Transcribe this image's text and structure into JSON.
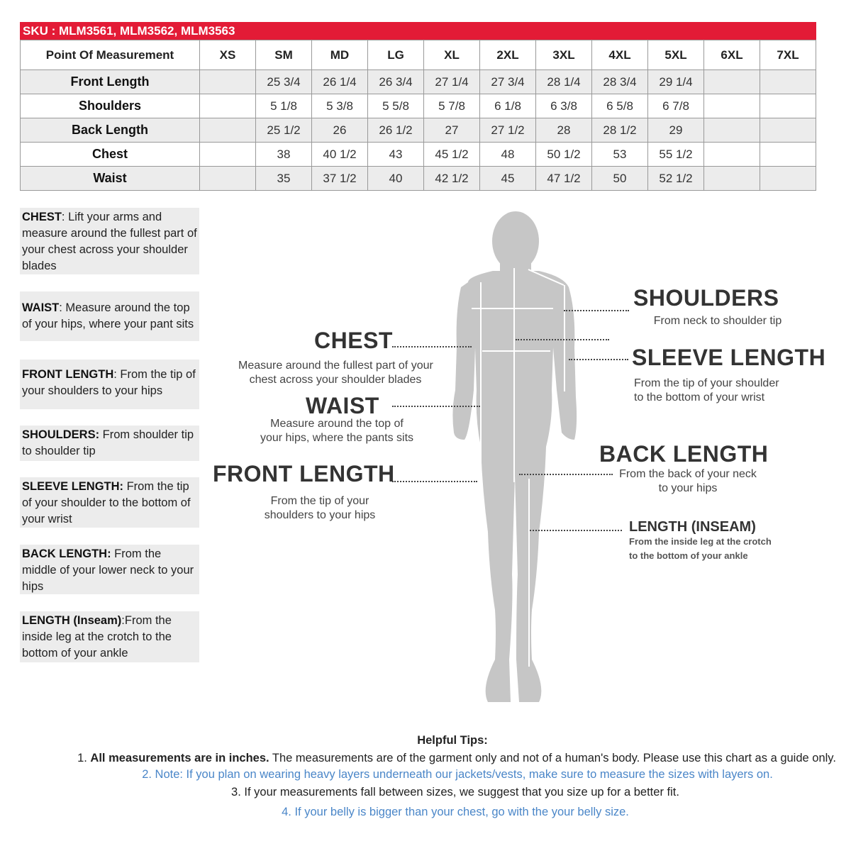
{
  "colors": {
    "header": "#e31b36",
    "silhouette": "#c6c6c6",
    "tip_blue": "#4a86c8"
  },
  "sku": "SKU : MLM3561, MLM3562, MLM3563",
  "table": {
    "headers": [
      "Point Of Measurement",
      "XS",
      "SM",
      "MD",
      "LG",
      "XL",
      "2XL",
      "3XL",
      "4XL",
      "5XL",
      "6XL",
      "7XL"
    ],
    "rows": [
      {
        "label": "Front Length",
        "values": [
          "",
          "25 3/4",
          "26 1/4",
          "26 3/4",
          "27 1/4",
          "27 3/4",
          "28 1/4",
          "28 3/4",
          "29 1/4",
          "",
          ""
        ]
      },
      {
        "label": "Shoulders",
        "values": [
          "",
          "5 1/8",
          "5 3/8",
          "5 5/8",
          "5 7/8",
          "6 1/8",
          "6 3/8",
          "6 5/8",
          "6 7/8",
          "",
          ""
        ]
      },
      {
        "label": "Back Length",
        "values": [
          "",
          "25 1/2",
          "26",
          "26 1/2",
          "27",
          "27 1/2",
          "28",
          "28 1/2",
          "29",
          "",
          ""
        ]
      },
      {
        "label": "Chest",
        "values": [
          "",
          "38",
          "40 1/2",
          "43",
          "45 1/2",
          "48",
          "50 1/2",
          "53",
          "55 1/2",
          "",
          ""
        ]
      },
      {
        "label": "Waist",
        "values": [
          "",
          "35",
          "37 1/2",
          "40",
          "42 1/2",
          "45",
          "47 1/2",
          "50",
          "52 1/2",
          "",
          ""
        ]
      }
    ]
  },
  "guide": [
    {
      "term": "CHEST",
      "text": ": Lift your arms  and measure around the fullest part of your chest across your shoulder blades"
    },
    {
      "term": "WAIST",
      "text": ":  Measure around the top of your hips, where your pant sits"
    },
    {
      "term": "FRONT LENGTH",
      "text": ": From the tip of your shoulders to your hips"
    },
    {
      "term": "SHOULDERS:",
      "text": " From shoulder tip to shoulder tip"
    },
    {
      "term": "SLEEVE LENGTH:",
      "text": " From the tip of your shoulder to the bottom of your wrist"
    },
    {
      "term": "BACK LENGTH:",
      "text": " From the middle of your lower neck to your hips"
    },
    {
      "term": "LENGTH (Inseam)",
      "text": ":From the inside leg at the crotch to the bottom of your ankle"
    }
  ],
  "figure": {
    "chest": {
      "title": "CHEST",
      "desc1": "Measure around the fullest part of your",
      "desc2": "chest across your shoulder blades"
    },
    "waist": {
      "title": "WAIST",
      "desc1": "Measure around the top of",
      "desc2": "your hips, where the pants sits"
    },
    "front": {
      "title": "FRONT LENGTH",
      "desc1": "From the tip of your",
      "desc2": "shoulders to your hips"
    },
    "shoulders": {
      "title": "SHOULDERS",
      "desc1": "From neck to shoulder tip"
    },
    "sleeve": {
      "title": "SLEEVE LENGTH",
      "desc1": "From the tip of your shoulder",
      "desc2": "to the bottom of your wrist"
    },
    "back": {
      "title": "BACK LENGTH",
      "desc1": "From the back of your neck",
      "desc2": "to your hips"
    },
    "inseam": {
      "title": "LENGTH (INSEAM)",
      "desc1": "From the inside leg at the crotch",
      "desc2": "to the bottom of your ankle"
    }
  },
  "tips": {
    "title": "Helpful Tips:",
    "t1_bold": "All measurements are in inches.",
    "t1_prefix": "1. ",
    "t1_rest": " The measurements are of the garment only and not of a human's body. Please use this chart as a guide only.",
    "t2": "2. Note: If you plan on wearing heavy layers underneath our jackets/vests, make sure to measure the sizes with layers on.",
    "t3": "3. If your measurements fall between sizes, we suggest that you size up for a better fit.",
    "t4": "4. If your belly is bigger than your chest, go with the your belly size."
  }
}
